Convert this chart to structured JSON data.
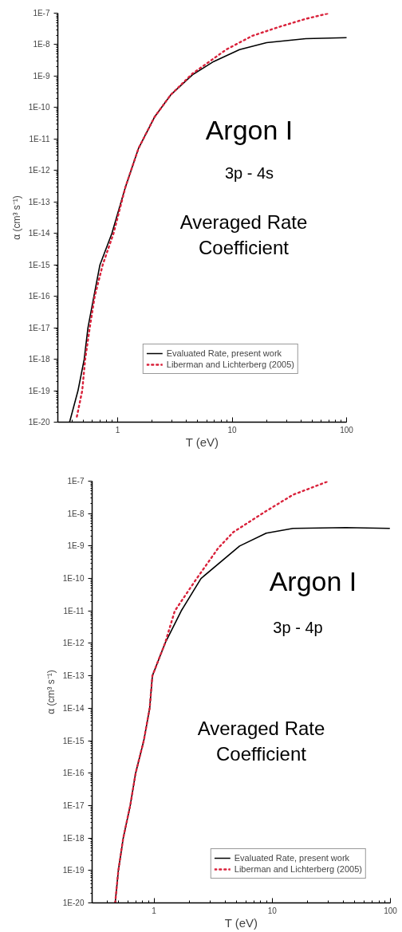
{
  "chart_data": [
    {
      "type": "line",
      "xlabel": "T (eV)",
      "ylabel": "α (cm³ s⁻¹)",
      "log": "xy",
      "grid": false,
      "legend": "bottom right",
      "annotations": [
        "Argon I",
        "3p - 4s",
        "Averaged Rate\nCoefficient"
      ],
      "xlim": [
        0.3,
        100
      ],
      "xticks": [
        1,
        10,
        100
      ],
      "ylim": [
        1e-20,
        1e-07
      ],
      "yticks": [
        {
          "value": 1e-07,
          "label": "1E-7"
        },
        {
          "value": 1e-08,
          "label": "1E-8"
        },
        {
          "value": 1e-09,
          "label": "1E-9"
        },
        {
          "value": 1e-10,
          "label": "1E-10"
        },
        {
          "value": 1e-11,
          "label": "1E-11"
        },
        {
          "value": 1e-12,
          "label": "1E-12"
        },
        {
          "value": 1e-13,
          "label": "1E-13"
        },
        {
          "value": 1e-14,
          "label": "1E-14"
        },
        {
          "value": 1e-15,
          "label": "1E-15"
        },
        {
          "value": 1e-16,
          "label": "1E-16"
        },
        {
          "value": 1e-17,
          "label": "1E-17"
        },
        {
          "value": 1e-18,
          "label": "1E-18"
        },
        {
          "value": 1e-19,
          "label": "1E-19"
        },
        {
          "value": 1e-20,
          "label": "1E-20"
        }
      ],
      "series": [
        {
          "name": "Evaluated Rate, present work",
          "color": "#000000",
          "line_style": "solid",
          "x": [
            0.38,
            0.45,
            0.51,
            0.55,
            0.62,
            0.7,
            0.89,
            1.17,
            1.52,
            2.1,
            2.9,
            4.5,
            6.9,
            11.6,
            20,
            44,
            100
          ],
          "values": [
            1e-20,
            1e-19,
            1e-18,
            1e-17,
            1e-16,
            1e-15,
            1e-14,
            3e-13,
            5e-12,
            5e-11,
            2.5e-10,
            1.1e-09,
            2.9e-09,
            6.9e-09,
            1.15e-08,
            1.55e-08,
            1.66e-08
          ]
        },
        {
          "name": "Liberman and Lichterberg (2005)",
          "color": "#d9213a",
          "line_style": "dotted",
          "x": [
            0.44,
            0.49,
            0.52,
            0.57,
            0.63,
            0.74,
            0.92,
            1.17,
            1.52,
            2.1,
            2.9,
            4.5,
            5.5,
            8.9,
            15,
            26,
            44,
            71
          ],
          "values": [
            1.5e-20,
            1e-19,
            1e-18,
            1e-17,
            1e-16,
            1e-15,
            1e-14,
            3e-13,
            5e-12,
            5e-11,
            2.5e-10,
            1.2e-09,
            2e-09,
            7e-09,
            1.9e-08,
            3.7e-08,
            6.6e-08,
            1e-07
          ]
        }
      ]
    },
    {
      "type": "line",
      "xlabel": "T (eV)",
      "ylabel": "α (cm³ s⁻¹)",
      "log": "xy",
      "grid": false,
      "legend": "bottom right",
      "annotations": [
        "Argon I",
        "3p - 4p",
        "Averaged Rate\nCoefficient"
      ],
      "xlim": [
        0.3,
        100
      ],
      "xticks": [
        1,
        10,
        100
      ],
      "ylim": [
        1e-20,
        1e-07
      ],
      "yticks": [
        {
          "value": 1e-07,
          "label": "1E-7"
        },
        {
          "value": 1e-08,
          "label": "1E-8"
        },
        {
          "value": 1e-09,
          "label": "1E-9"
        },
        {
          "value": 1e-10,
          "label": "1E-10"
        },
        {
          "value": 1e-11,
          "label": "1E-11"
        },
        {
          "value": 1e-12,
          "label": "1E-12"
        },
        {
          "value": 1e-13,
          "label": "1E-13"
        },
        {
          "value": 1e-14,
          "label": "1E-14"
        },
        {
          "value": 1e-15,
          "label": "1E-15"
        },
        {
          "value": 1e-16,
          "label": "1E-16"
        },
        {
          "value": 1e-17,
          "label": "1E-17"
        },
        {
          "value": 1e-18,
          "label": "1E-18"
        },
        {
          "value": 1e-19,
          "label": "1E-19"
        },
        {
          "value": 1e-20,
          "label": "1E-20"
        }
      ],
      "series": [
        {
          "name": "Evaluated Rate, present work",
          "color": "#000000",
          "line_style": "solid",
          "x": [
            0.47,
            0.5,
            0.55,
            0.63,
            0.7,
            0.82,
            0.92,
            0.97,
            1.24,
            1.7,
            2.5,
            5.3,
            8.9,
            15,
            42,
            98
          ],
          "values": [
            1e-20,
            1e-19,
            1e-18,
            1e-17,
            1e-16,
            1e-15,
            1e-14,
            1e-13,
            1e-12,
            1e-11,
            1e-10,
            1e-09,
            2.5e-09,
            3.5e-09,
            3.7e-09,
            3.5e-09
          ]
        },
        {
          "name": "Liberman and Lichterberg (2005)",
          "color": "#d9213a",
          "line_style": "dotted",
          "x": [
            0.47,
            0.5,
            0.55,
            0.63,
            0.7,
            0.82,
            0.92,
            0.97,
            1.24,
            1.5,
            2.3,
            3.5,
            4.7,
            8.9,
            15,
            30
          ],
          "values": [
            1e-20,
            1e-19,
            1e-18,
            1e-17,
            1e-16,
            1e-15,
            1e-14,
            1e-13,
            1e-12,
            1e-11,
            1e-10,
            8.7e-10,
            2.7e-09,
            1.2e-08,
            3.8e-08,
            1e-07
          ]
        }
      ]
    }
  ]
}
